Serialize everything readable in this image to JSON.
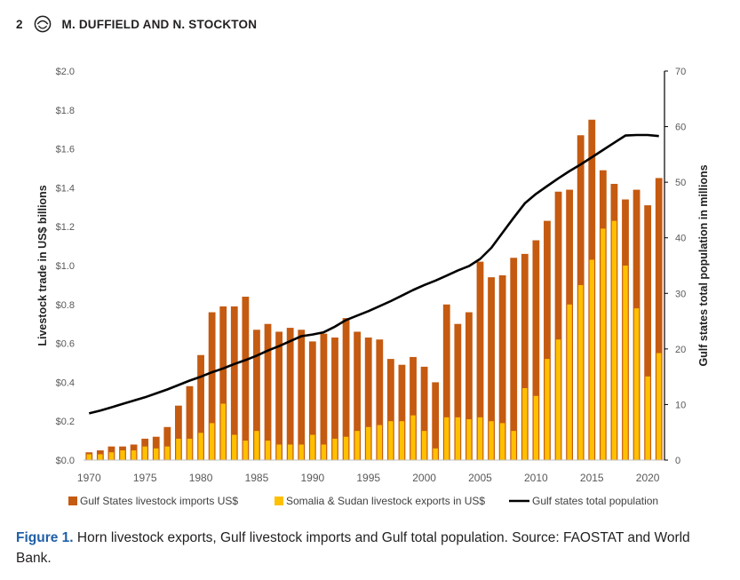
{
  "header": {
    "page_number": "2",
    "authors": "M. DUFFIELD AND N. STOCKTON"
  },
  "caption": {
    "label": "Figure 1.",
    "text": " Horn livestock exports, Gulf livestock imports and Gulf total population. Source: FAOSTAT and World Bank."
  },
  "chart_data": {
    "type": "bar",
    "xlabel": "",
    "ylabel": "Livestock trade in US$ billions",
    "ylabel_right": "Gulf states total population in millions",
    "ylim": [
      0,
      2.0
    ],
    "ylim_right": [
      0,
      70
    ],
    "yticks": [
      "$0.0",
      "$0.2",
      "$0.4",
      "$0.6",
      "$0.8",
      "$1.0",
      "$1.2",
      "$1.4",
      "$1.6",
      "$1.8",
      "$2.0"
    ],
    "yticks_right": [
      "0",
      "10",
      "20",
      "30",
      "40",
      "50",
      "60",
      "70"
    ],
    "xticks": [
      "1970",
      "1975",
      "1980",
      "1985",
      "1990",
      "1995",
      "2000",
      "2005",
      "2010",
      "2015",
      "2020"
    ],
    "years": [
      1970,
      1971,
      1972,
      1973,
      1974,
      1975,
      1976,
      1977,
      1978,
      1979,
      1980,
      1981,
      1982,
      1983,
      1984,
      1985,
      1986,
      1987,
      1988,
      1989,
      1990,
      1991,
      1992,
      1993,
      1994,
      1995,
      1996,
      1997,
      1998,
      1999,
      2000,
      2001,
      2002,
      2003,
      2004,
      2005,
      2006,
      2007,
      2008,
      2009,
      2010,
      2011,
      2012,
      2013,
      2014,
      2015,
      2016,
      2017,
      2018,
      2019,
      2020,
      2021
    ],
    "legend_position": "bottom",
    "series": [
      {
        "name": "Gulf States livestock imports US$",
        "kind": "bar",
        "axis": "left",
        "color": "#c55a11",
        "values": [
          0.04,
          0.05,
          0.07,
          0.07,
          0.08,
          0.11,
          0.12,
          0.17,
          0.28,
          0.38,
          0.54,
          0.76,
          0.79,
          0.79,
          0.84,
          0.67,
          0.7,
          0.66,
          0.68,
          0.67,
          0.61,
          0.65,
          0.63,
          0.73,
          0.66,
          0.63,
          0.62,
          0.52,
          0.49,
          0.53,
          0.48,
          0.4,
          0.8,
          0.7,
          0.76,
          1.02,
          0.94,
          0.95,
          1.04,
          1.06,
          1.13,
          1.23,
          1.38,
          1.39,
          1.67,
          1.75,
          1.49,
          1.42,
          1.34,
          1.39,
          1.31,
          1.45
        ]
      },
      {
        "name": "Somalia & Sudan livestock exports in US$",
        "kind": "bar",
        "axis": "left",
        "color": "#ffc000",
        "values": [
          0.03,
          0.03,
          0.04,
          0.05,
          0.05,
          0.07,
          0.06,
          0.07,
          0.11,
          0.11,
          0.14,
          0.19,
          0.29,
          0.13,
          0.1,
          0.15,
          0.1,
          0.08,
          0.08,
          0.08,
          0.13,
          0.08,
          0.11,
          0.12,
          0.15,
          0.17,
          0.18,
          0.2,
          0.2,
          0.23,
          0.15,
          0.06,
          0.22,
          0.22,
          0.21,
          0.22,
          0.2,
          0.19,
          0.15,
          0.37,
          0.33,
          0.52,
          0.62,
          0.8,
          0.9,
          1.03,
          1.19,
          1.23,
          1.0,
          0.78,
          0.43,
          0.55
        ]
      },
      {
        "name": "Gulf states total population",
        "kind": "line",
        "axis": "right",
        "color": "#000000",
        "values": [
          8.4,
          8.9,
          9.5,
          10.1,
          10.7,
          11.3,
          12.0,
          12.7,
          13.5,
          14.3,
          15.0,
          15.8,
          16.5,
          17.3,
          18.0,
          18.8,
          19.7,
          20.5,
          21.4,
          22.3,
          22.6,
          23.0,
          24.0,
          25.2,
          26.0,
          26.8,
          27.7,
          28.6,
          29.6,
          30.6,
          31.5,
          32.3,
          33.2,
          34.1,
          34.9,
          36.2,
          38.2,
          40.9,
          43.6,
          46.2,
          47.9,
          49.3,
          50.7,
          52.0,
          53.2,
          54.5,
          55.8,
          57.1,
          58.4,
          58.5,
          58.5,
          58.3
        ]
      }
    ]
  }
}
